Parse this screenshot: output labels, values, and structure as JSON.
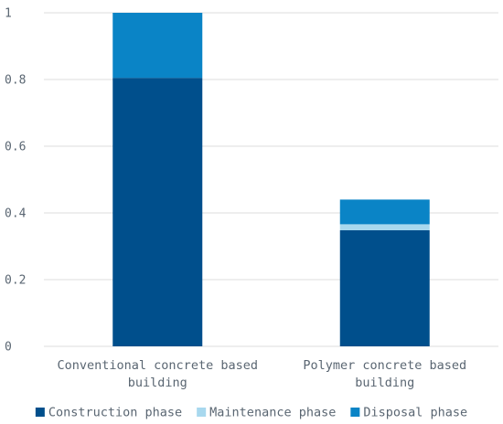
{
  "chart_data": {
    "type": "bar",
    "stacked": true,
    "title": "",
    "xlabel": "",
    "ylabel": "",
    "ylim": [
      0,
      1
    ],
    "yticks": [
      {
        "value": 0,
        "label": "0"
      },
      {
        "value": 0.2,
        "label": "0.2"
      },
      {
        "value": 0.4,
        "label": "0.4"
      },
      {
        "value": 0.6,
        "label": "0.6"
      },
      {
        "value": 0.8,
        "label": "0.8"
      },
      {
        "value": 1,
        "label": "1"
      }
    ],
    "categories": [
      [
        "Conventional concrete based",
        "building"
      ],
      [
        "Polymer concrete based",
        "building"
      ]
    ],
    "series": [
      {
        "name": "Construction phase",
        "color": "#004f8c",
        "values": [
          0.805,
          0.348
        ]
      },
      {
        "name": "Maintenance phase",
        "color": "#a8d8ee",
        "values": [
          0.0,
          0.018
        ]
      },
      {
        "name": "Disposal phase",
        "color": "#0a84c6",
        "values": [
          0.195,
          0.074
        ]
      }
    ],
    "grid": true,
    "legend_position": "bottom"
  }
}
